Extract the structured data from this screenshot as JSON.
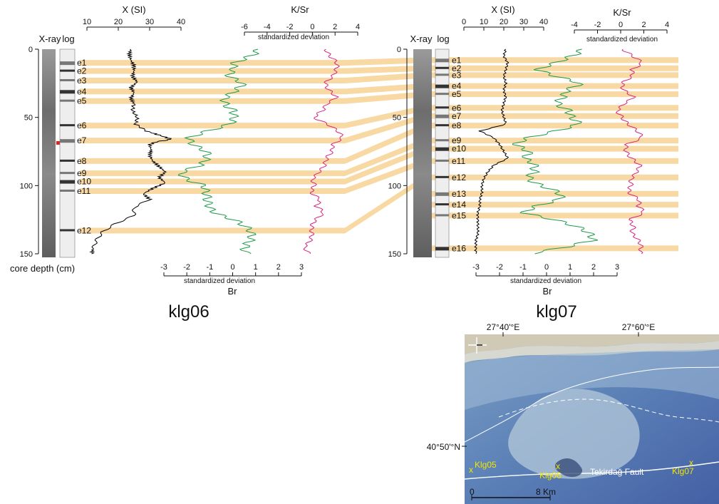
{
  "colors": {
    "event_band": "#f8d9a4",
    "ms_line": "#000000",
    "br_line": "#1e9a4a",
    "ksr_line": "#d6257e",
    "map_site": "#f2e600",
    "map_fault": "#ffffff",
    "red_marker": "#dd2222"
  },
  "labels": {
    "xray": "X-ray",
    "log": "log",
    "core_depth": "core depth (cm)",
    "ms_axis": "X (SI)",
    "ksr_axis": "K/Sr",
    "br_axis": "Br",
    "std_dev": "standardized deviation"
  },
  "map": {
    "lon_labels": [
      "27°40'°E",
      "27°60'°E"
    ],
    "lat_label": "40°50'°N",
    "sites": [
      "Klg05",
      "Klg06",
      "Klg07"
    ],
    "site_marker": "x",
    "fault_label": "Tekirdağ Fault",
    "scale_start": "0",
    "scale_end": "8 Km",
    "compass_icon": "compass-rose-icon"
  },
  "chart_data": [
    {
      "type": "line",
      "title": "klg06",
      "ylabel": "core depth (cm)",
      "depth_range": [
        0,
        150
      ],
      "depth_ticks": [
        "0",
        "50",
        "100",
        "150"
      ],
      "events": [
        {
          "name": "e1",
          "depth": 10
        },
        {
          "name": "e2",
          "depth": 16
        },
        {
          "name": "e3",
          "depth": 23
        },
        {
          "name": "e4",
          "depth": 31
        },
        {
          "name": "e5",
          "depth": 38
        },
        {
          "name": "e6",
          "depth": 56
        },
        {
          "name": "e7",
          "depth": 67
        },
        {
          "name": "e8",
          "depth": 82
        },
        {
          "name": "e9",
          "depth": 91
        },
        {
          "name": "e10",
          "depth": 97
        },
        {
          "name": "e11",
          "depth": 104
        },
        {
          "name": "e12",
          "depth": 133
        }
      ],
      "series": [
        {
          "name": "X (SI)",
          "axis_ticks": [
            "10",
            "20",
            "30",
            "40"
          ],
          "axis_range": [
            10,
            40
          ],
          "axis_position": "top",
          "depth": [
            0,
            4,
            8,
            12,
            16,
            20,
            24,
            28,
            32,
            36,
            40,
            45,
            50,
            55,
            60,
            63,
            66,
            68,
            70,
            74,
            78,
            82,
            86,
            90,
            94,
            98,
            102,
            106,
            110,
            116,
            122,
            128,
            134,
            140,
            146,
            150
          ],
          "values": [
            24,
            23.5,
            24,
            25,
            25,
            24.5,
            26,
            24,
            25,
            24,
            25,
            24.5,
            26,
            25.5,
            29,
            33,
            37,
            32,
            30,
            30.5,
            30,
            31,
            33,
            35,
            33,
            35,
            31,
            28,
            30,
            25,
            25,
            19,
            15,
            13,
            12,
            11.5
          ]
        },
        {
          "name": "Br",
          "axis_ticks": [
            "-3",
            "-2",
            "-1",
            "0",
            "1",
            "2",
            "3"
          ],
          "axis_range": [
            -3,
            3
          ],
          "axis_position": "bottom",
          "depth": [
            0,
            5,
            10,
            15,
            20,
            25,
            30,
            35,
            40,
            45,
            50,
            55,
            60,
            65,
            70,
            75,
            80,
            85,
            90,
            95,
            100,
            105,
            110,
            115,
            120,
            125,
            130,
            135,
            140,
            145,
            150
          ],
          "values": [
            0.8,
            0.5,
            0.2,
            0.4,
            0,
            0.2,
            -0.2,
            -0.3,
            0,
            0.3,
            -0.1,
            -0.5,
            -1.2,
            -1.6,
            -1.4,
            -1.2,
            -1.5,
            -1.6,
            -2,
            -1.7,
            -1.2,
            -1.5,
            -1.4,
            -0.9,
            -0.4,
            0.2,
            0.3,
            0.5,
            0.8,
            0.9,
            0.8
          ]
        },
        {
          "name": "K/Sr",
          "axis_ticks": [
            "-6",
            "-4",
            "-2",
            "0",
            "2",
            "4"
          ],
          "axis_range": [
            -6,
            4
          ],
          "axis_position": "top",
          "depth": [
            0,
            5,
            10,
            15,
            20,
            25,
            30,
            35,
            40,
            45,
            50,
            55,
            60,
            65,
            70,
            75,
            80,
            85,
            90,
            95,
            100,
            105,
            110,
            115,
            120,
            125,
            130,
            135,
            140,
            145,
            150
          ],
          "values": [
            1.5,
            1.5,
            1.8,
            1.9,
            2,
            1.5,
            1.5,
            1.8,
            1,
            1,
            0.5,
            1.5,
            2,
            2.3,
            1.8,
            2.1,
            1.5,
            0.9,
            0.2,
            -0.1,
            0.5,
            0.2,
            0.6,
            0,
            0.8,
            0.5,
            0.3,
            0,
            -0.5,
            -1,
            -0.2
          ]
        }
      ]
    },
    {
      "type": "line",
      "title": "klg07",
      "ylabel": "core depth (cm)",
      "depth_range": [
        0,
        150
      ],
      "depth_ticks": [
        "0",
        "50",
        "100",
        "150"
      ],
      "events": [
        {
          "name": "e1",
          "depth": 8
        },
        {
          "name": "e2",
          "depth": 14
        },
        {
          "name": "e3",
          "depth": 19
        },
        {
          "name": "e4",
          "depth": 27
        },
        {
          "name": "e5",
          "depth": 33
        },
        {
          "name": "e6",
          "depth": 43
        },
        {
          "name": "e7",
          "depth": 49
        },
        {
          "name": "e8",
          "depth": 56
        },
        {
          "name": "e9",
          "depth": 67
        },
        {
          "name": "e10",
          "depth": 73
        },
        {
          "name": "e11",
          "depth": 82
        },
        {
          "name": "e12",
          "depth": 94
        },
        {
          "name": "e13",
          "depth": 106
        },
        {
          "name": "e14",
          "depth": 114
        },
        {
          "name": "e15",
          "depth": 122
        },
        {
          "name": "e16",
          "depth": 146
        }
      ],
      "series": [
        {
          "name": "X (SI)",
          "axis_ticks": [
            "0",
            "10",
            "20",
            "30",
            "40"
          ],
          "axis_range": [
            0,
            40
          ],
          "axis_position": "top",
          "depth": [
            0,
            5,
            10,
            15,
            20,
            25,
            30,
            35,
            40,
            45,
            50,
            55,
            60,
            65,
            70,
            75,
            80,
            85,
            90,
            95,
            100,
            105,
            110,
            115,
            120,
            125,
            130,
            135,
            140,
            145,
            150
          ],
          "values": [
            21,
            20,
            22,
            21,
            20,
            21,
            20,
            21,
            20,
            19,
            20,
            21,
            8,
            15,
            18,
            20,
            22,
            15,
            12,
            10,
            9,
            9,
            8,
            8,
            7,
            7,
            7,
            7,
            6,
            6,
            6
          ]
        },
        {
          "name": "Br",
          "axis_ticks": [
            "-3",
            "-2",
            "-1",
            "0",
            "1",
            "2",
            "3"
          ],
          "axis_range": [
            -3,
            3
          ],
          "axis_position": "bottom",
          "depth": [
            0,
            5,
            10,
            15,
            20,
            25,
            30,
            35,
            40,
            45,
            50,
            55,
            60,
            65,
            70,
            75,
            80,
            85,
            90,
            95,
            100,
            105,
            110,
            115,
            120,
            125,
            130,
            135,
            140,
            145,
            150
          ],
          "values": [
            1.2,
            0.8,
            0.5,
            0,
            0.6,
            1.2,
            0.5,
            0.7,
            0.8,
            1.2,
            0.9,
            1,
            0.3,
            -0.5,
            -1,
            -0.8,
            -1.3,
            -0.7,
            -0.3,
            -0.4,
            -0.2,
            0.2,
            0.3,
            -0.3,
            -0.6,
            0.5,
            1,
            1.5,
            2,
            1.2,
            -0.5
          ]
        },
        {
          "name": "K/Sr",
          "axis_ticks": [
            "-4",
            "-2",
            "0",
            "2",
            "4"
          ],
          "axis_range": [
            -4,
            4
          ],
          "axis_position": "top",
          "depth": [
            0,
            5,
            10,
            15,
            20,
            25,
            30,
            35,
            40,
            45,
            50,
            55,
            60,
            65,
            70,
            75,
            80,
            85,
            90,
            95,
            100,
            105,
            110,
            115,
            120,
            125,
            130,
            135,
            140,
            145,
            150
          ],
          "values": [
            0.5,
            1,
            1.5,
            0.8,
            1.2,
            0.5,
            0.3,
            0.8,
            0,
            -0.2,
            0.5,
            0.8,
            1.2,
            1.5,
            0.5,
            0.8,
            1.2,
            1.5,
            1,
            0.8,
            1.2,
            1,
            1.5,
            1.2,
            1.8,
            1,
            1.5,
            1,
            1.2,
            1.5,
            1.8
          ]
        }
      ]
    }
  ]
}
